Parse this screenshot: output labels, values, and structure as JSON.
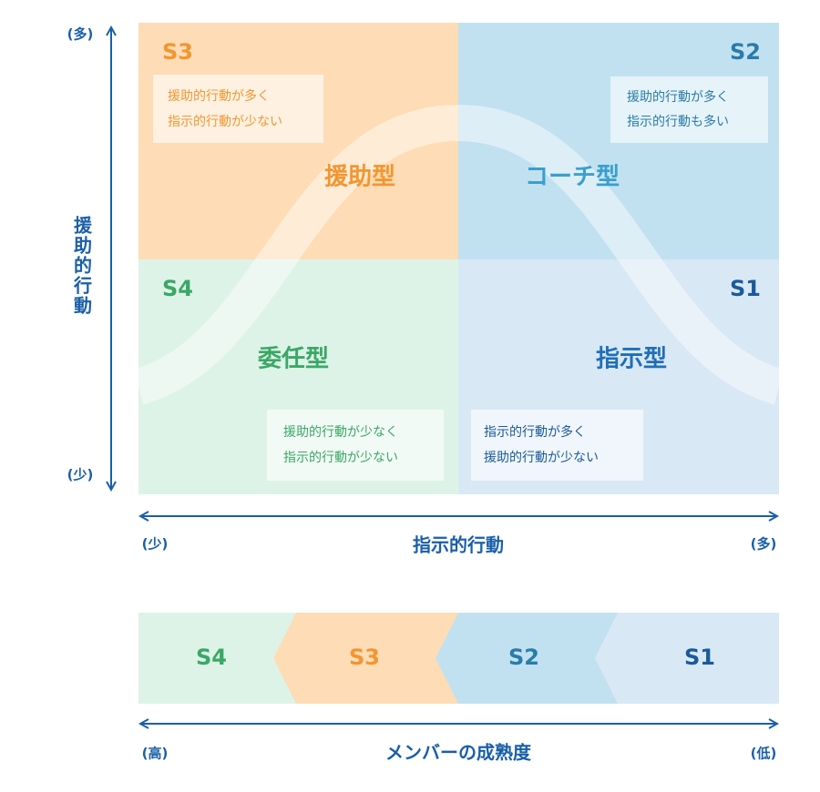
{
  "y_axis": {
    "label": "援助的行動",
    "top": "(多)",
    "bottom": "(少)"
  },
  "x_axis": {
    "label": "指示的行動",
    "left": "(少)",
    "right": "(多)"
  },
  "quadrants": [
    {
      "code": "S3",
      "style": "援助型",
      "lines": [
        "援助的行動が多く",
        "指示的行動が少ない"
      ]
    },
    {
      "code": "S2",
      "style": "コーチ型",
      "lines": [
        "援助的行動が多く",
        "指示的行動も多い"
      ]
    },
    {
      "code": "S4",
      "style": "委任型",
      "lines": [
        "援助的行動が少なく",
        "指示的行動が少ない"
      ]
    },
    {
      "code": "S1",
      "style": "指示型",
      "lines": [
        "指示的行動が多く",
        "援助的行動が少ない"
      ]
    }
  ],
  "maturity": {
    "segments": [
      "S4",
      "S3",
      "S2",
      "S1"
    ],
    "label": "メンバーの成熟度",
    "left": "(高)",
    "right": "(低)"
  }
}
